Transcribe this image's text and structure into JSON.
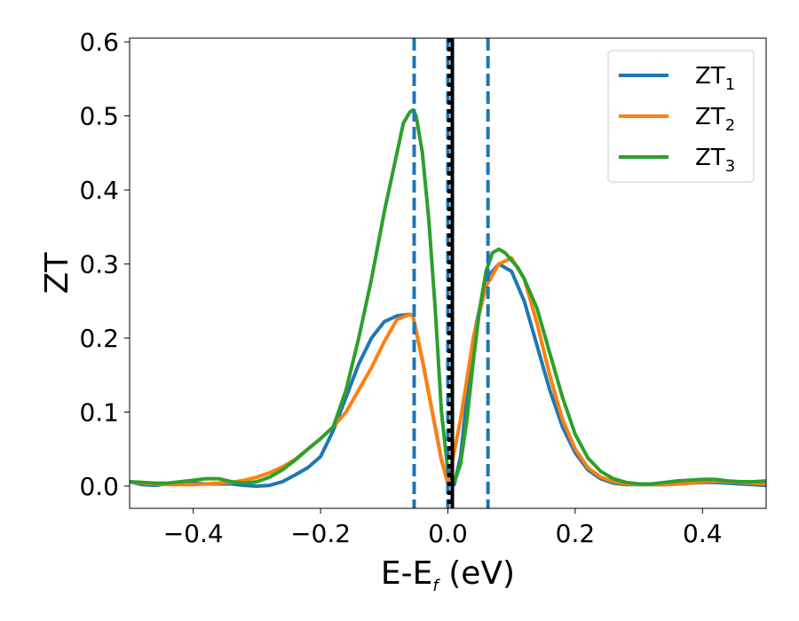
{
  "chart_data": {
    "type": "line",
    "xlabel_main": "E-E",
    "xlabel_sub": "f",
    "xlabel_unit": " (eV)",
    "ylabel": "ZT",
    "xlim": [
      -0.5,
      0.5
    ],
    "ylim": [
      -0.03,
      0.605
    ],
    "xticks": [
      -0.4,
      -0.2,
      0.0,
      0.2,
      0.4
    ],
    "xtick_labels": [
      "−0.4",
      "−0.2",
      "0.0",
      "0.2",
      "0.4"
    ],
    "yticks": [
      0.0,
      0.1,
      0.2,
      0.3,
      0.4,
      0.5,
      0.6
    ],
    "ytick_labels": [
      "0.0",
      "0.1",
      "0.2",
      "0.3",
      "0.4",
      "0.5",
      "0.6"
    ],
    "grid": false,
    "legend_position": "top-right",
    "vertical_lines": [
      {
        "x": -0.053,
        "style": "dashed",
        "color": "#1f77b4"
      },
      {
        "x": 0.0,
        "style": "dashed",
        "color": "#1f77b4"
      },
      {
        "x": 0.063,
        "style": "dashed",
        "color": "#1f77b4"
      },
      {
        "x": 0.007,
        "style": "solid",
        "color": "#000000"
      },
      {
        "x": 0.002,
        "style": "dotted",
        "color": "#000000"
      }
    ],
    "series": [
      {
        "name": "ZT",
        "sub": "1",
        "color": "#1f77b4",
        "x": [
          -0.5,
          -0.48,
          -0.46,
          -0.44,
          -0.42,
          -0.4,
          -0.38,
          -0.36,
          -0.34,
          -0.32,
          -0.3,
          -0.28,
          -0.26,
          -0.24,
          -0.22,
          -0.2,
          -0.18,
          -0.16,
          -0.14,
          -0.12,
          -0.1,
          -0.08,
          -0.06,
          -0.055,
          -0.04,
          -0.02,
          -0.01,
          0.0,
          0.01,
          0.02,
          0.03,
          0.04,
          0.06,
          0.08,
          0.1,
          0.12,
          0.14,
          0.16,
          0.18,
          0.2,
          0.22,
          0.24,
          0.26,
          0.28,
          0.3,
          0.32,
          0.34,
          0.36,
          0.38,
          0.4,
          0.42,
          0.44,
          0.46,
          0.48,
          0.5
        ],
        "y": [
          0.006,
          0.002,
          0.001,
          0.003,
          0.004,
          0.004,
          0.003,
          0.003,
          0.003,
          0.001,
          0.0,
          0.001,
          0.006,
          0.015,
          0.025,
          0.04,
          0.075,
          0.12,
          0.165,
          0.2,
          0.222,
          0.23,
          0.232,
          0.23,
          0.17,
          0.08,
          0.035,
          0.005,
          0.002,
          0.04,
          0.12,
          0.2,
          0.28,
          0.3,
          0.29,
          0.25,
          0.19,
          0.13,
          0.08,
          0.045,
          0.022,
          0.01,
          0.004,
          0.002,
          0.002,
          0.002,
          0.002,
          0.003,
          0.004,
          0.005,
          0.005,
          0.004,
          0.003,
          0.002,
          0.001
        ]
      },
      {
        "name": "ZT",
        "sub": "2",
        "color": "#ff7f0e",
        "x": [
          -0.5,
          -0.48,
          -0.46,
          -0.44,
          -0.42,
          -0.4,
          -0.38,
          -0.36,
          -0.34,
          -0.32,
          -0.3,
          -0.28,
          -0.26,
          -0.24,
          -0.22,
          -0.2,
          -0.18,
          -0.16,
          -0.14,
          -0.12,
          -0.1,
          -0.08,
          -0.06,
          -0.055,
          -0.04,
          -0.02,
          -0.01,
          0.0,
          0.02,
          0.04,
          0.06,
          0.08,
          0.1,
          0.12,
          0.14,
          0.16,
          0.18,
          0.2,
          0.22,
          0.24,
          0.26,
          0.28,
          0.3,
          0.32,
          0.34,
          0.36,
          0.38,
          0.4,
          0.42,
          0.44,
          0.46,
          0.48,
          0.5
        ],
        "y": [
          0.006,
          0.004,
          0.003,
          0.002,
          0.002,
          0.002,
          0.003,
          0.004,
          0.005,
          0.008,
          0.012,
          0.018,
          0.026,
          0.036,
          0.05,
          0.064,
          0.08,
          0.1,
          0.13,
          0.16,
          0.195,
          0.225,
          0.232,
          0.23,
          0.17,
          0.08,
          0.035,
          0.003,
          0.09,
          0.2,
          0.27,
          0.3,
          0.308,
          0.28,
          0.22,
          0.15,
          0.09,
          0.05,
          0.025,
          0.012,
          0.006,
          0.003,
          0.002,
          0.002,
          0.002,
          0.003,
          0.004,
          0.006,
          0.007,
          0.006,
          0.005,
          0.004,
          0.003
        ]
      },
      {
        "name": "ZT",
        "sub": "3",
        "color": "#2ca02c",
        "x": [
          -0.5,
          -0.48,
          -0.46,
          -0.44,
          -0.42,
          -0.4,
          -0.38,
          -0.36,
          -0.34,
          -0.32,
          -0.3,
          -0.28,
          -0.26,
          -0.24,
          -0.22,
          -0.2,
          -0.18,
          -0.16,
          -0.14,
          -0.12,
          -0.1,
          -0.08,
          -0.07,
          -0.06,
          -0.055,
          -0.05,
          -0.04,
          -0.03,
          -0.02,
          -0.01,
          0.0,
          0.01,
          0.02,
          0.03,
          0.04,
          0.05,
          0.06,
          0.07,
          0.08,
          0.09,
          0.1,
          0.11,
          0.12,
          0.14,
          0.16,
          0.18,
          0.2,
          0.22,
          0.24,
          0.26,
          0.28,
          0.3,
          0.32,
          0.34,
          0.36,
          0.38,
          0.4,
          0.42,
          0.44,
          0.46,
          0.48,
          0.5
        ],
        "y": [
          0.006,
          0.005,
          0.004,
          0.004,
          0.006,
          0.008,
          0.01,
          0.01,
          0.006,
          0.004,
          0.006,
          0.012,
          0.022,
          0.035,
          0.05,
          0.064,
          0.08,
          0.13,
          0.2,
          0.28,
          0.37,
          0.45,
          0.49,
          0.505,
          0.508,
          0.5,
          0.45,
          0.36,
          0.24,
          0.1,
          0.02,
          0.005,
          0.03,
          0.09,
          0.17,
          0.24,
          0.29,
          0.315,
          0.32,
          0.315,
          0.305,
          0.295,
          0.28,
          0.24,
          0.18,
          0.12,
          0.07,
          0.038,
          0.02,
          0.01,
          0.005,
          0.003,
          0.003,
          0.005,
          0.007,
          0.008,
          0.009,
          0.009,
          0.007,
          0.006,
          0.006,
          0.007
        ]
      }
    ]
  }
}
